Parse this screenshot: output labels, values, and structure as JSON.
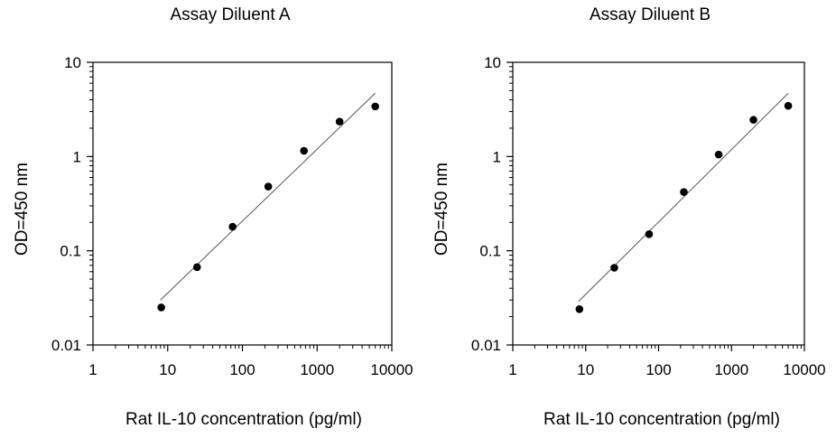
{
  "chart_data": [
    {
      "type": "scatter",
      "title": "Assay Diluent A",
      "xlabel": "Rat IL-10 concentration (pg/ml)",
      "ylabel": "OD=450 nm",
      "xscale": "log",
      "yscale": "log",
      "xlim": [
        1,
        10000
      ],
      "ylim": [
        0.01,
        10
      ],
      "xticks": [
        "1",
        "10",
        "100",
        "1000",
        "10000"
      ],
      "yticks": [
        "0.01",
        "0.1",
        "1",
        "10"
      ],
      "grid": false,
      "legend": "none",
      "marker_color": "#000000",
      "fit_line_color": "#555555",
      "points": [
        {
          "x": 8.2,
          "y": 0.025
        },
        {
          "x": 24.7,
          "y": 0.067
        },
        {
          "x": 74,
          "y": 0.18
        },
        {
          "x": 222,
          "y": 0.48
        },
        {
          "x": 667,
          "y": 1.15
        },
        {
          "x": 2000,
          "y": 2.35
        },
        {
          "x": 6000,
          "y": 3.4
        }
      ],
      "fit_line": [
        {
          "x": 8,
          "y": 0.03
        },
        {
          "x": 6000,
          "y": 4.7
        }
      ]
    },
    {
      "type": "scatter",
      "title": "Assay Diluent B",
      "xlabel": "Rat IL-10 concentration (pg/ml)",
      "ylabel": "OD=450 nm",
      "xscale": "log",
      "yscale": "log",
      "xlim": [
        1,
        10000
      ],
      "ylim": [
        0.01,
        10
      ],
      "xticks": [
        "1",
        "10",
        "100",
        "1000",
        "10000"
      ],
      "yticks": [
        "0.01",
        "0.1",
        "1",
        "10"
      ],
      "grid": false,
      "legend": "none",
      "marker_color": "#000000",
      "fit_line_color": "#555555",
      "points": [
        {
          "x": 8.2,
          "y": 0.024
        },
        {
          "x": 24.7,
          "y": 0.066
        },
        {
          "x": 74,
          "y": 0.15
        },
        {
          "x": 222,
          "y": 0.42
        },
        {
          "x": 667,
          "y": 1.05
        },
        {
          "x": 2000,
          "y": 2.45
        },
        {
          "x": 6000,
          "y": 3.45
        }
      ],
      "fit_line": [
        {
          "x": 8,
          "y": 0.029
        },
        {
          "x": 6000,
          "y": 4.7
        }
      ]
    }
  ]
}
